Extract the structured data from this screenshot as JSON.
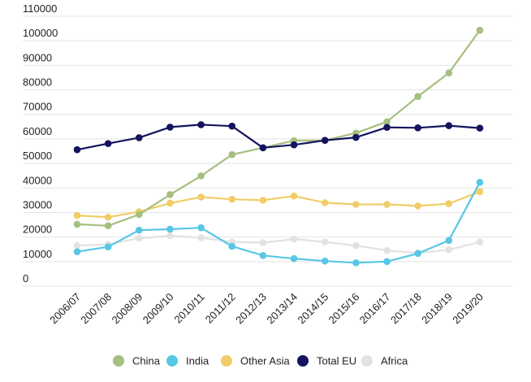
{
  "chart_data": {
    "type": "line",
    "title": "",
    "xlabel": "",
    "ylabel": "",
    "ylim": [
      0,
      110000
    ],
    "y_ticks": [
      0,
      10000,
      20000,
      30000,
      40000,
      50000,
      60000,
      70000,
      80000,
      90000,
      100000,
      110000
    ],
    "grid": "horizontal",
    "legend_position": "bottom",
    "categories": [
      "2006/07",
      "2007/08",
      "2008/09",
      "2009/10",
      "2010/11",
      "2011/12",
      "2012/13",
      "2013/14",
      "2014/15",
      "2015/16",
      "2016/17",
      "2017/18",
      "2018/19",
      "2019/20"
    ],
    "series": [
      {
        "name": "Africa",
        "color": "#e2e2e2",
        "values": [
          16500,
          17000,
          19500,
          20500,
          19700,
          18000,
          17700,
          19200,
          18000,
          16500,
          14500,
          13500,
          14800,
          18000
        ]
      },
      {
        "name": "Other Asia",
        "color": "#f0cd67",
        "values": [
          28800,
          28100,
          30300,
          33800,
          36300,
          35400,
          35000,
          36700,
          34000,
          33300,
          33300,
          32700,
          33600,
          38500
        ]
      },
      {
        "name": "India",
        "color": "#57c7e5",
        "values": [
          14000,
          16000,
          22800,
          23200,
          23800,
          16200,
          12500,
          11200,
          10200,
          9500,
          10000,
          13300,
          18600,
          42300
        ]
      },
      {
        "name": "China",
        "color": "#a6bf80",
        "values": [
          25200,
          24600,
          29200,
          37300,
          44900,
          53600,
          56400,
          59300,
          59400,
          62400,
          67000,
          77300,
          86900,
          104300
        ]
      },
      {
        "name": "Total EU",
        "color": "#14145e",
        "values": [
          55600,
          58100,
          60500,
          64800,
          65800,
          65200,
          56400,
          57600,
          59400,
          60600,
          64700,
          64500,
          65400,
          64400
        ]
      }
    ],
    "legend": [
      "China",
      "India",
      "Other Asia",
      "Total EU",
      "Africa"
    ]
  }
}
